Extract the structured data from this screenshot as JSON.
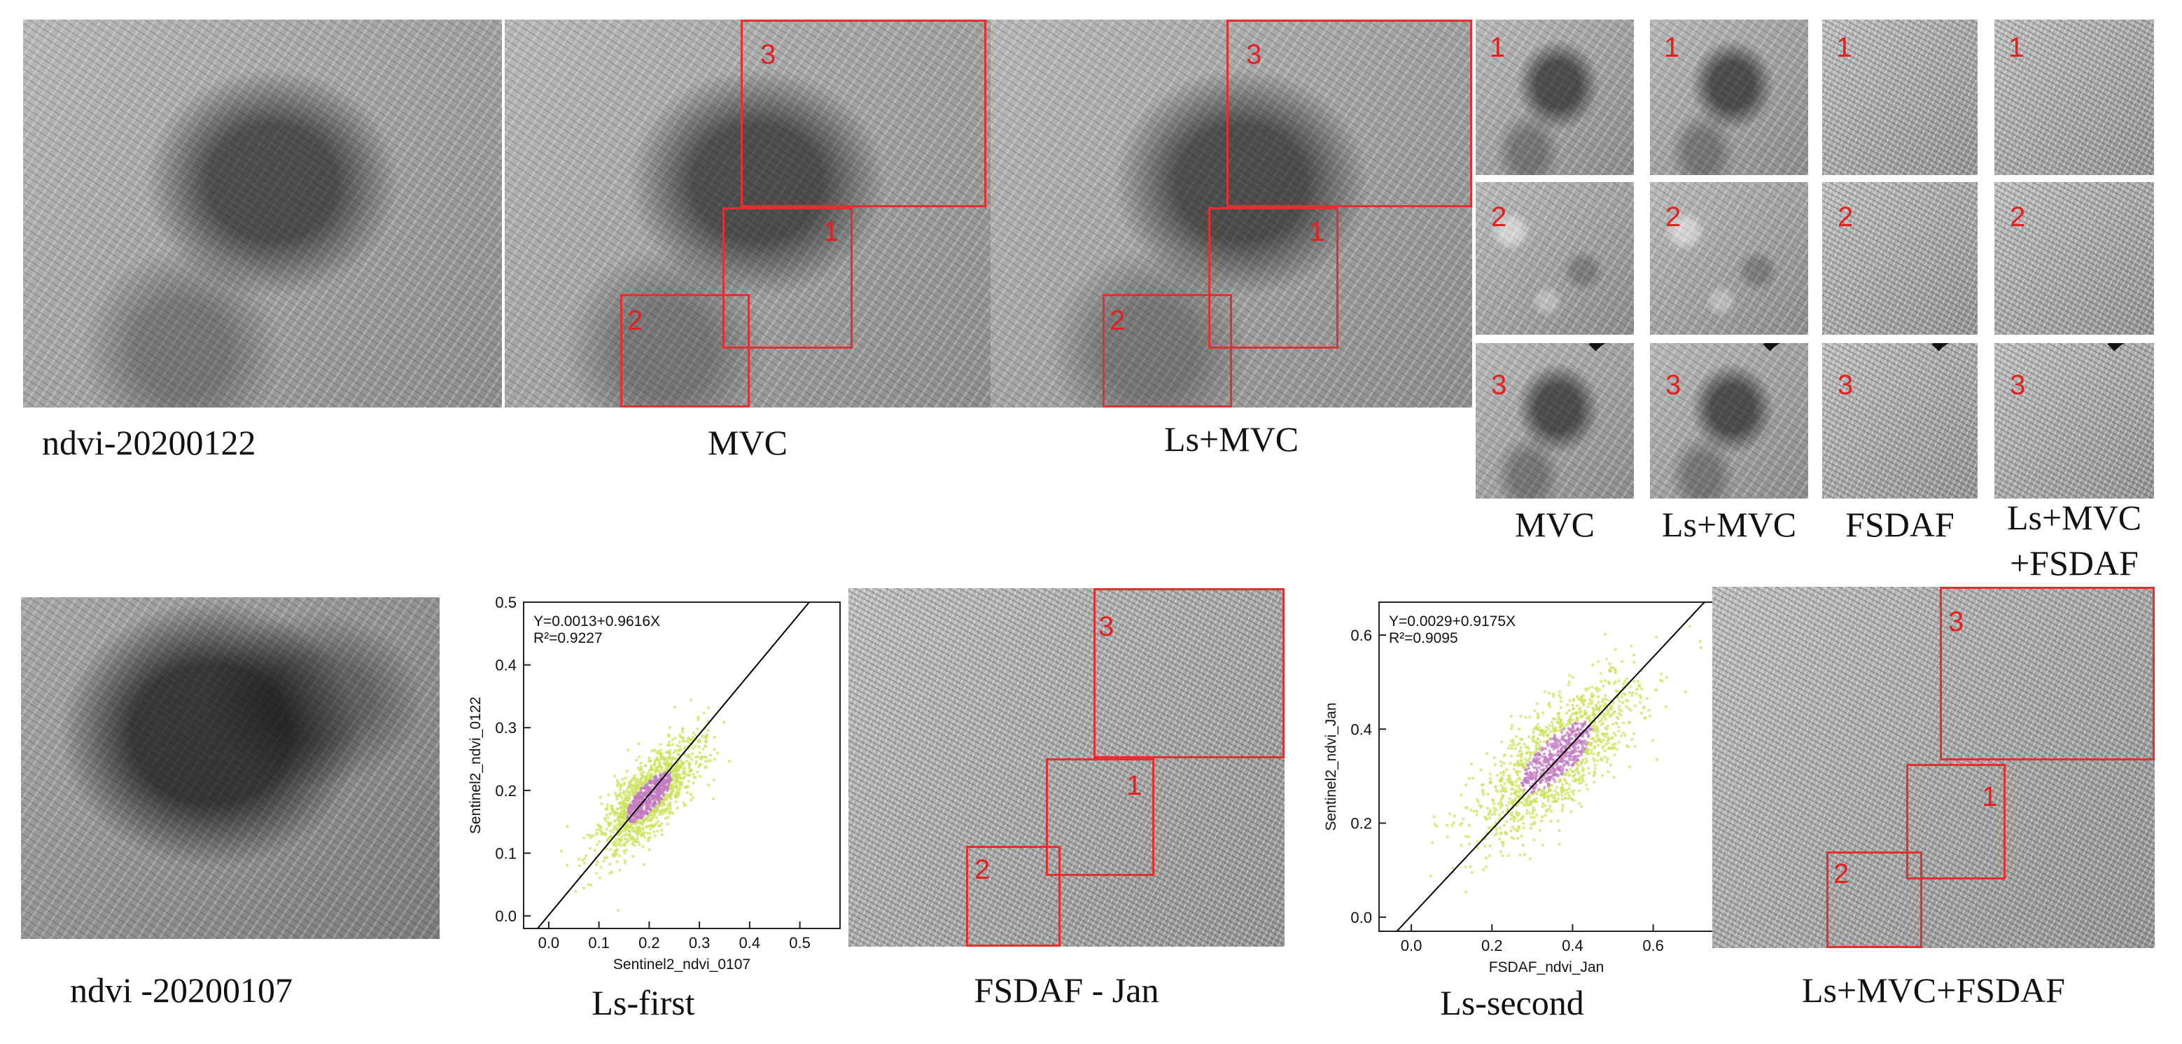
{
  "captions": {
    "top_1": "ndvi-20200122",
    "top_2": "MVC",
    "top_3": "Ls+MVC",
    "grid_col_1": "MVC",
    "grid_col_2": "Ls+MVC",
    "grid_col_3": "FSDAF",
    "grid_col_4_line1": "Ls+MVC",
    "grid_col_4_line2": "+FSDAF",
    "bottom_1": "ndvi -20200107",
    "bottom_2": "Ls-first",
    "bottom_3": "FSDAF - Jan",
    "bottom_4": "Ls-second",
    "bottom_5": "Ls+MVC+FSDAF"
  },
  "region_labels": [
    "1",
    "2",
    "3"
  ],
  "colors": {
    "highlight_box": "#e23030",
    "region_label": "#e42020",
    "scatter_point_outer": "#cce35a",
    "scatter_point_inner": "#c27bbf",
    "fit_line": "#000000"
  },
  "chart_data": [
    {
      "type": "scatter",
      "xlabel": "Sentinel2_ndvi_0107",
      "ylabel": "Sentinel2_ndvi_0122",
      "xlim": [
        -0.05,
        0.58
      ],
      "ylim": [
        -0.02,
        0.5
      ],
      "xticks": [
        "0.0",
        "0.1",
        "0.2",
        "0.3",
        "0.4",
        "0.5"
      ],
      "yticks": [
        "0.0",
        "0.1",
        "0.2",
        "0.3",
        "0.4",
        "0.5"
      ],
      "equation": "Y=0.0013+0.9616X",
      "r2": "R²=0.9227",
      "fit": {
        "intercept": 0.0013,
        "slope": 0.9616
      },
      "cluster": {
        "center": [
          0.2,
          0.19
        ],
        "spread": [
          0.05,
          0.045
        ]
      }
    },
    {
      "type": "scatter",
      "xlabel": "FSDAF_ndvi_Jan",
      "ylabel": "Sentinel2_ndvi_Jan",
      "xlim": [
        -0.08,
        0.75
      ],
      "ylim": [
        -0.03,
        0.67
      ],
      "xticks": [
        "0.0",
        "0.2",
        "0.4",
        "0.6"
      ],
      "yticks": [
        "0.0",
        "0.2",
        "0.4",
        "0.6"
      ],
      "equation": "Y=0.0029+0.9175X",
      "r2": "R²=0.9095",
      "fit": {
        "intercept": 0.0029,
        "slope": 0.9175
      },
      "cluster": {
        "center": [
          0.36,
          0.34
        ],
        "spread": [
          0.1,
          0.085
        ]
      }
    }
  ]
}
